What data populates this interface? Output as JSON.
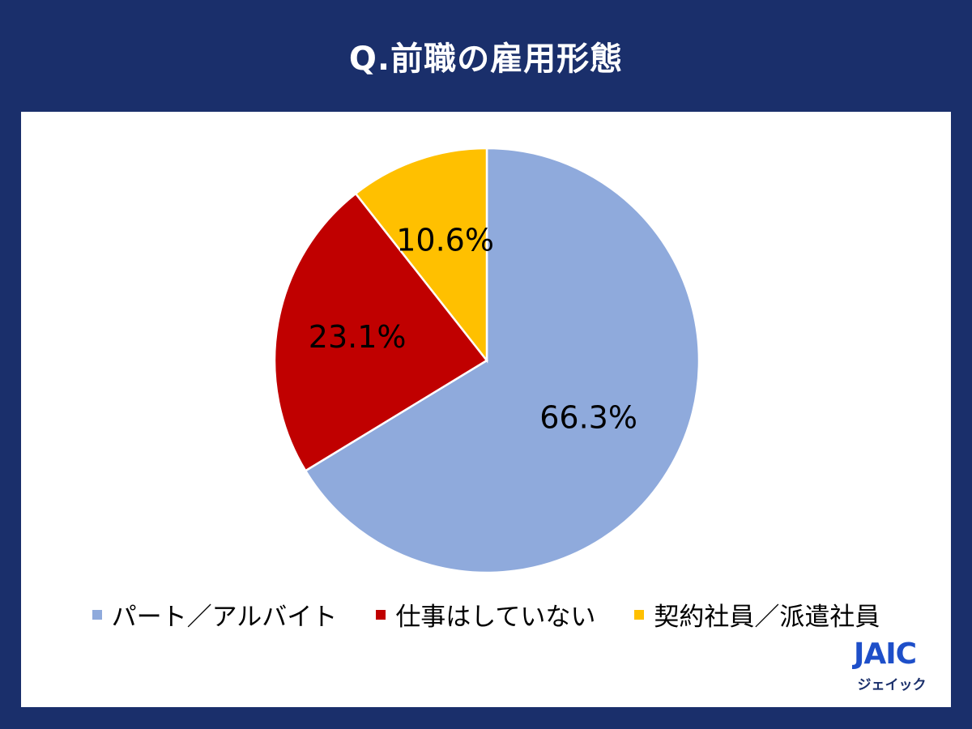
{
  "title": "Q.前職の雇用形態",
  "chart_data": {
    "type": "pie",
    "slices": [
      {
        "label": "パート／アルバイト",
        "value": 66.3,
        "value_label": "66.3%",
        "color": "#8faadc"
      },
      {
        "label": "仕事はしていない",
        "value": 23.1,
        "value_label": "23.1%",
        "color": "#c00000"
      },
      {
        "label": "契約社員／派遣社員",
        "value": 10.6,
        "value_label": "10.6%",
        "color": "#ffc000"
      }
    ],
    "start": "12 o'clock",
    "direction": "clockwise",
    "legend_position": "bottom"
  },
  "logo": {
    "mark": "JAIC",
    "sub": "ジェイック",
    "color": "#1e4fc9"
  }
}
